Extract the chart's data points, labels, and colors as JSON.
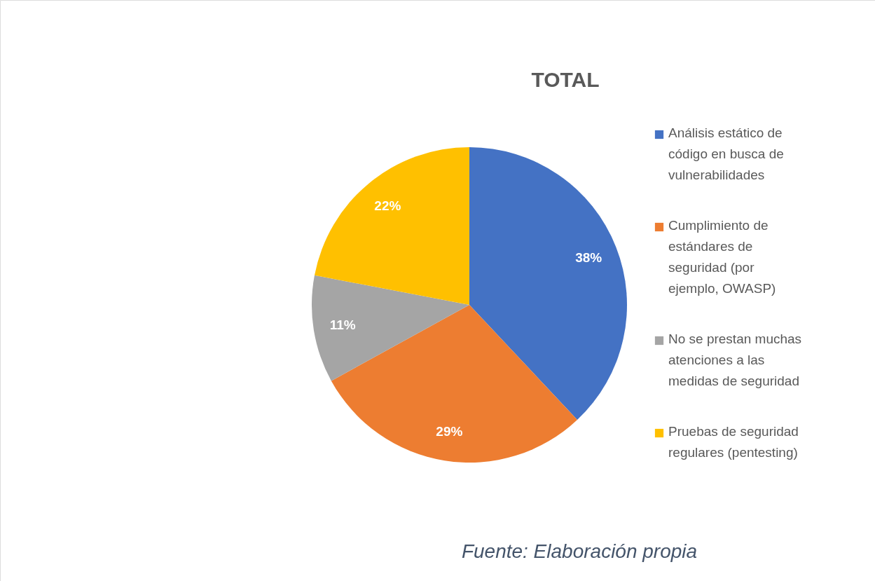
{
  "chart_data": {
    "type": "pie",
    "title": "TOTAL",
    "categories": [
      "Análisis estático de código en busca de vulnerabilidades",
      "Cumplimiento de estándares de seguridad (por ejemplo, OWASP)",
      "No se prestan muchas atenciones a las medidas de seguridad",
      "Pruebas de seguridad regulares (pentesting)"
    ],
    "values": [
      38,
      29,
      11,
      22
    ],
    "colors": [
      "#4472c4",
      "#ed7d31",
      "#a5a5a5",
      "#ffc000"
    ],
    "value_labels": [
      "38%",
      "29%",
      "11%",
      "22%"
    ],
    "legend": "right",
    "annotations": [
      "Fuente: Elaboración propia"
    ]
  }
}
